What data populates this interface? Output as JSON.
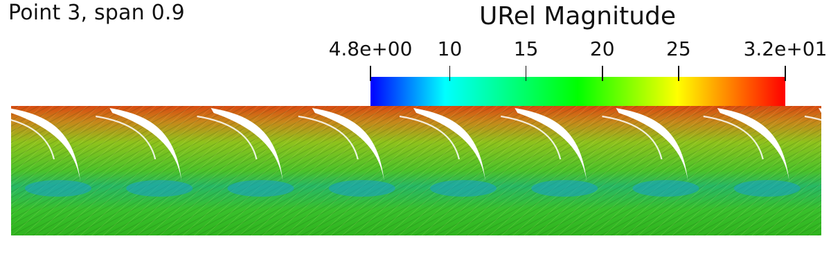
{
  "view": {
    "title": "Point 3, span 0.9",
    "field_variable": "URel Magnitude",
    "field_description": "Unwrapped blade-to-blade streamline view at constant span; eight periodic passages colored by relative velocity magnitude"
  },
  "legend": {
    "title": "URel Magnitude",
    "min": 4.8,
    "max": 32,
    "min_label": "4.8e+00",
    "max_label": "3.2e+01",
    "ticks": [
      {
        "value": 4.8,
        "label": "4.8e+00"
      },
      {
        "value": 10,
        "label": "10"
      },
      {
        "value": 15,
        "label": "15"
      },
      {
        "value": 20,
        "label": "20"
      },
      {
        "value": 25,
        "label": "25"
      },
      {
        "value": 32,
        "label": "3.2e+01"
      }
    ],
    "colormap": [
      "#0000ff",
      "#00ffff",
      "#00ff00",
      "#ffff00",
      "#ff0000"
    ]
  },
  "passages": {
    "count": 8
  },
  "colors": {
    "high_velocity": "#d94a10",
    "mid_velocity": "#59c41a",
    "low_velocity": "#1aa0c8",
    "blade": "#ffffff"
  }
}
